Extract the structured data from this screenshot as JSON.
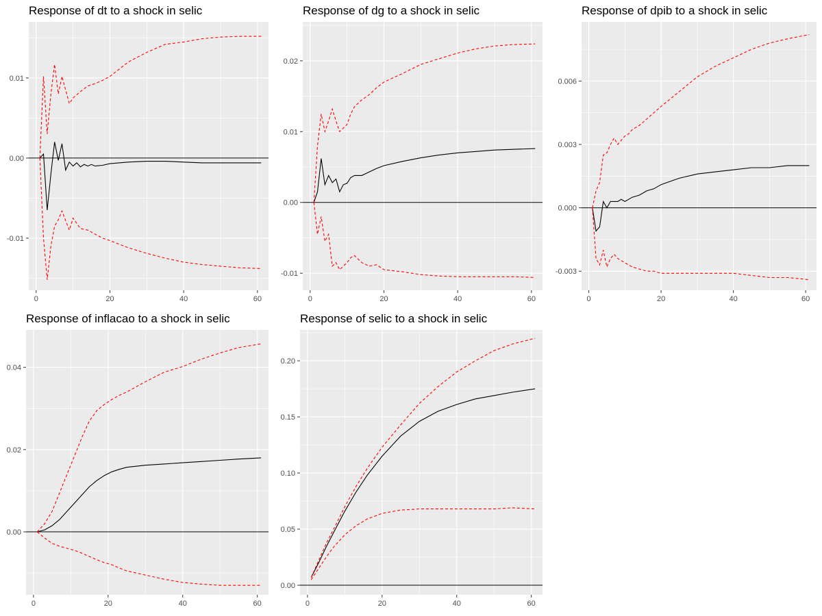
{
  "chart_data": [
    {
      "type": "line",
      "title": "Response of dt to a shock in selic",
      "xlabel": "",
      "ylabel": "",
      "xlim": [
        -2,
        63
      ],
      "ylim": [
        -0.0165,
        0.017
      ],
      "xticks": [
        0,
        20,
        40,
        60
      ],
      "yticks": [
        -0.01,
        0,
        0.01
      ],
      "ytick_labels": [
        "-0.01",
        "0.00",
        "0.01"
      ],
      "grid": true,
      "zero_line": 0,
      "colors": {
        "response": "#000000",
        "bounds": "#ff0000"
      },
      "series": [
        {
          "role": "response",
          "style": "solid",
          "x": [
            1,
            2,
            3,
            4,
            5,
            6,
            7,
            8,
            9,
            10,
            11,
            12,
            13,
            14,
            15,
            16,
            18,
            20,
            25,
            30,
            35,
            40,
            45,
            50,
            55,
            61
          ],
          "y": [
            0,
            0.0005,
            -0.0065,
            -0.002,
            0.002,
            -0.0003,
            0.0018,
            -0.0015,
            -0.0005,
            -0.001,
            -0.0006,
            -0.0011,
            -0.0008,
            -0.001,
            -0.0008,
            -0.001,
            -0.0009,
            -0.0007,
            -0.0005,
            -0.0004,
            -0.0004,
            -0.0005,
            -0.0006,
            -0.0006,
            -0.0006,
            -0.0006
          ]
        },
        {
          "role": "upper",
          "style": "dashed",
          "x": [
            1,
            2,
            3,
            4,
            5,
            6,
            7,
            8,
            9,
            10,
            12,
            14,
            16,
            18,
            20,
            25,
            30,
            35,
            40,
            45,
            50,
            55,
            61
          ],
          "y": [
            0,
            0.0102,
            0.003,
            0.008,
            0.0117,
            0.008,
            0.0102,
            0.0085,
            0.0068,
            0.0075,
            0.0083,
            0.009,
            0.0093,
            0.0097,
            0.0102,
            0.012,
            0.0132,
            0.0142,
            0.0145,
            0.0149,
            0.0151,
            0.0152,
            0.0152
          ]
        },
        {
          "role": "lower",
          "style": "dashed",
          "x": [
            1,
            2,
            3,
            4,
            5,
            6,
            7,
            8,
            9,
            10,
            12,
            14,
            16,
            18,
            20,
            25,
            30,
            35,
            40,
            45,
            50,
            55,
            61
          ],
          "y": [
            0,
            -0.01,
            -0.0152,
            -0.011,
            -0.0085,
            -0.0077,
            -0.0066,
            -0.0078,
            -0.009,
            -0.0075,
            -0.0088,
            -0.009,
            -0.0095,
            -0.01,
            -0.0103,
            -0.0112,
            -0.0119,
            -0.0125,
            -0.013,
            -0.0133,
            -0.0135,
            -0.0137,
            -0.0138
          ]
        }
      ]
    },
    {
      "type": "line",
      "title": "Response of dg to a shock in selic",
      "xlabel": "",
      "ylabel": "",
      "xlim": [
        -2,
        63
      ],
      "ylim": [
        -0.0124,
        0.0255
      ],
      "xticks": [
        0,
        20,
        40,
        60
      ],
      "yticks": [
        -0.01,
        0,
        0.01,
        0.02
      ],
      "ytick_labels": [
        "-0.01",
        "0.00",
        "0.01",
        "0.02"
      ],
      "grid": true,
      "zero_line": 0,
      "colors": {
        "response": "#000000",
        "bounds": "#ff0000"
      },
      "series": [
        {
          "role": "response",
          "style": "solid",
          "x": [
            1,
            2,
            3,
            4,
            5,
            6,
            7,
            8,
            9,
            10,
            11,
            12,
            14,
            16,
            18,
            20,
            25,
            30,
            35,
            40,
            45,
            50,
            55,
            61
          ],
          "y": [
            0,
            0.0015,
            0.0062,
            0.0025,
            0.0038,
            0.0028,
            0.0033,
            0.0015,
            0.0025,
            0.0027,
            0.0035,
            0.0038,
            0.0038,
            0.0043,
            0.0048,
            0.0052,
            0.0058,
            0.0063,
            0.0067,
            0.007,
            0.0072,
            0.0074,
            0.0075,
            0.0076
          ]
        },
        {
          "role": "upper",
          "style": "dashed",
          "x": [
            1,
            2,
            3,
            4,
            5,
            6,
            7,
            8,
            9,
            10,
            11,
            12,
            14,
            16,
            18,
            20,
            25,
            30,
            35,
            40,
            45,
            50,
            55,
            61
          ],
          "y": [
            0,
            0.008,
            0.0125,
            0.01,
            0.0115,
            0.0132,
            0.0115,
            0.01,
            0.0105,
            0.011,
            0.0125,
            0.0135,
            0.0145,
            0.0152,
            0.0162,
            0.017,
            0.0182,
            0.0195,
            0.0203,
            0.0211,
            0.0217,
            0.0221,
            0.0223,
            0.0224
          ]
        },
        {
          "role": "lower",
          "style": "dashed",
          "x": [
            1,
            2,
            3,
            4,
            5,
            6,
            7,
            8,
            9,
            10,
            11,
            12,
            14,
            16,
            18,
            20,
            25,
            30,
            35,
            40,
            45,
            50,
            55,
            61
          ],
          "y": [
            0,
            -0.0045,
            -0.002,
            -0.0055,
            -0.0045,
            -0.009,
            -0.0085,
            -0.0095,
            -0.009,
            -0.0085,
            -0.0078,
            -0.0075,
            -0.0085,
            -0.009,
            -0.0088,
            -0.0095,
            -0.0098,
            -0.0102,
            -0.0104,
            -0.0105,
            -0.0105,
            -0.0105,
            -0.0105,
            -0.0106
          ]
        }
      ]
    },
    {
      "type": "line",
      "title": "Response of dpib to a shock in selic",
      "xlabel": "",
      "ylabel": "",
      "xlim": [
        -2,
        63
      ],
      "ylim": [
        -0.0039,
        0.0088
      ],
      "xticks": [
        0,
        20,
        40,
        60
      ],
      "yticks": [
        -0.003,
        0,
        0.003,
        0.006
      ],
      "ytick_labels": [
        "-0.003",
        "0.000",
        "0.003",
        "0.006"
      ],
      "grid": true,
      "zero_line": 0,
      "colors": {
        "response": "#000000",
        "bounds": "#ff0000"
      },
      "series": [
        {
          "role": "response",
          "style": "solid",
          "x": [
            1,
            2,
            3,
            4,
            5,
            6,
            7,
            8,
            9,
            10,
            11,
            12,
            14,
            16,
            18,
            20,
            25,
            30,
            35,
            40,
            45,
            50,
            55,
            61
          ],
          "y": [
            0,
            -0.0011,
            -0.0009,
            0.0003,
            0,
            0.0003,
            0.0003,
            0.0003,
            0.0004,
            0.0003,
            0.0004,
            0.0005,
            0.0006,
            0.0008,
            0.0009,
            0.0011,
            0.0014,
            0.0016,
            0.0017,
            0.0018,
            0.0019,
            0.0019,
            0.002,
            0.002
          ]
        },
        {
          "role": "upper",
          "style": "dashed",
          "x": [
            1,
            2,
            3,
            4,
            5,
            6,
            7,
            8,
            9,
            10,
            11,
            12,
            14,
            16,
            18,
            20,
            25,
            30,
            35,
            40,
            45,
            50,
            55,
            61
          ],
          "y": [
            0,
            0.0008,
            0.0012,
            0.0025,
            0.0026,
            0.003,
            0.0033,
            0.003,
            0.0032,
            0.0034,
            0.0035,
            0.0037,
            0.0039,
            0.0042,
            0.0045,
            0.0048,
            0.0055,
            0.0062,
            0.0067,
            0.0071,
            0.0075,
            0.0078,
            0.008,
            0.0082
          ]
        },
        {
          "role": "lower",
          "style": "dashed",
          "x": [
            1,
            2,
            3,
            4,
            5,
            6,
            7,
            8,
            9,
            10,
            11,
            12,
            14,
            16,
            18,
            20,
            25,
            30,
            35,
            40,
            45,
            50,
            55,
            61
          ],
          "y": [
            0,
            -0.0024,
            -0.0027,
            -0.002,
            -0.0028,
            -0.0024,
            -0.0022,
            -0.0024,
            -0.0025,
            -0.0026,
            -0.0027,
            -0.0028,
            -0.0029,
            -0.003,
            -0.003,
            -0.0031,
            -0.0031,
            -0.0031,
            -0.0031,
            -0.0031,
            -0.0032,
            -0.0033,
            -0.0033,
            -0.0034
          ]
        }
      ]
    },
    {
      "type": "line",
      "title": "Response of inflacao to a shock in selic",
      "xlabel": "",
      "ylabel": "",
      "xlim": [
        -2,
        63
      ],
      "ylim": [
        -0.0153,
        0.0491
      ],
      "xticks": [
        0,
        20,
        40,
        60
      ],
      "yticks": [
        0,
        0.02,
        0.04
      ],
      "ytick_labels": [
        "0.00",
        "0.02",
        "0.04"
      ],
      "grid": true,
      "zero_line": 0,
      "colors": {
        "response": "#000000",
        "bounds": "#ff0000"
      },
      "series": [
        {
          "role": "response",
          "style": "solid",
          "x": [
            1,
            3,
            5,
            7,
            9,
            11,
            13,
            15,
            17,
            19,
            21,
            23,
            25,
            30,
            35,
            40,
            45,
            50,
            55,
            61
          ],
          "y": [
            0,
            0.0005,
            0.0015,
            0.003,
            0.005,
            0.007,
            0.009,
            0.011,
            0.0125,
            0.0137,
            0.0146,
            0.0152,
            0.0157,
            0.0162,
            0.0165,
            0.0168,
            0.0171,
            0.0174,
            0.0177,
            0.018
          ]
        },
        {
          "role": "upper",
          "style": "dashed",
          "x": [
            1,
            3,
            5,
            7,
            9,
            11,
            13,
            15,
            17,
            19,
            21,
            23,
            25,
            30,
            35,
            40,
            45,
            50,
            55,
            61
          ],
          "y": [
            0,
            0.002,
            0.005,
            0.0095,
            0.014,
            0.0185,
            0.023,
            0.027,
            0.0295,
            0.031,
            0.0322,
            0.0332,
            0.034,
            0.0365,
            0.0388,
            0.0402,
            0.042,
            0.0435,
            0.0448,
            0.0457
          ]
        },
        {
          "role": "lower",
          "style": "dashed",
          "x": [
            1,
            3,
            5,
            7,
            9,
            11,
            13,
            15,
            17,
            19,
            21,
            23,
            25,
            30,
            35,
            40,
            45,
            50,
            55,
            61
          ],
          "y": [
            0,
            -0.0015,
            -0.0028,
            -0.0035,
            -0.004,
            -0.0045,
            -0.0052,
            -0.006,
            -0.0068,
            -0.0075,
            -0.008,
            -0.0088,
            -0.0095,
            -0.0105,
            -0.0115,
            -0.0123,
            -0.0127,
            -0.013,
            -0.013,
            -0.013
          ]
        }
      ]
    },
    {
      "type": "line",
      "title": "Response of selic to a shock in selic",
      "xlabel": "",
      "ylabel": "",
      "xlim": [
        -2,
        63
      ],
      "ylim": [
        -0.0085,
        0.2275
      ],
      "xticks": [
        0,
        20,
        40,
        60
      ],
      "yticks": [
        0,
        0.05,
        0.1,
        0.15,
        0.2
      ],
      "ytick_labels": [
        "0.00",
        "0.05",
        "0.10",
        "0.15",
        "0.20"
      ],
      "grid": true,
      "zero_line": 0,
      "colors": {
        "response": "#000000",
        "bounds": "#ff0000"
      },
      "series": [
        {
          "role": "response",
          "style": "solid",
          "x": [
            1,
            3,
            5,
            7,
            10,
            13,
            16,
            20,
            25,
            30,
            35,
            40,
            45,
            50,
            55,
            61
          ],
          "y": [
            0.007,
            0.02,
            0.034,
            0.047,
            0.066,
            0.083,
            0.098,
            0.115,
            0.133,
            0.146,
            0.155,
            0.161,
            0.166,
            0.169,
            0.172,
            0.175
          ]
        },
        {
          "role": "upper",
          "style": "dashed",
          "x": [
            1,
            3,
            5,
            7,
            10,
            13,
            16,
            20,
            25,
            30,
            35,
            40,
            45,
            50,
            55,
            61
          ],
          "y": [
            0.007,
            0.022,
            0.037,
            0.05,
            0.07,
            0.088,
            0.104,
            0.123,
            0.143,
            0.162,
            0.177,
            0.19,
            0.2,
            0.209,
            0.215,
            0.22
          ]
        },
        {
          "role": "lower",
          "style": "dashed",
          "x": [
            1,
            3,
            5,
            7,
            10,
            13,
            16,
            20,
            25,
            30,
            35,
            40,
            45,
            50,
            55,
            61
          ],
          "y": [
            0.005,
            0.015,
            0.025,
            0.034,
            0.045,
            0.053,
            0.059,
            0.064,
            0.067,
            0.068,
            0.068,
            0.068,
            0.068,
            0.068,
            0.069,
            0.068
          ]
        }
      ]
    }
  ]
}
